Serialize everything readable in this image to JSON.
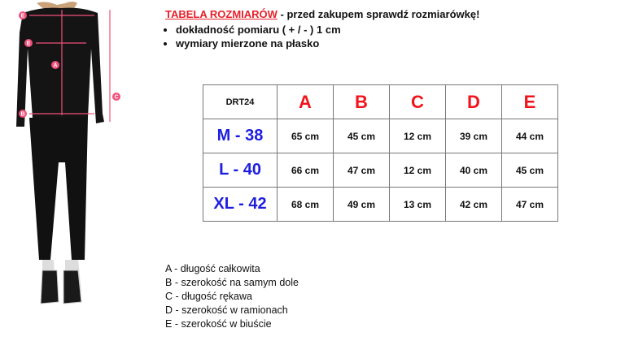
{
  "header": {
    "title": "TABELA ROZMIARÓW",
    "subtitle": " - przed zakupem sprawdź rozmiarówkę!"
  },
  "notes": [
    "dokładność pomiaru ( + / - ) 1 cm",
    "wymiary mierzone na płasko"
  ],
  "table": {
    "code": "DRT24",
    "columns": [
      "A",
      "B",
      "C",
      "D",
      "E"
    ],
    "rows": [
      {
        "size": "M - 38",
        "values": [
          "65 cm",
          "45 cm",
          "12 cm",
          "39 cm",
          "44 cm"
        ]
      },
      {
        "size": "L - 40",
        "values": [
          "66 cm",
          "47 cm",
          "12 cm",
          "40 cm",
          "45 cm"
        ]
      },
      {
        "size": "XL - 42",
        "values": [
          "68 cm",
          "49 cm",
          "13 cm",
          "42 cm",
          "47 cm"
        ]
      }
    ]
  },
  "legend": [
    {
      "key": "A",
      "text": " - długość całkowita"
    },
    {
      "key": "B",
      "text": " - szerokość na samym dole"
    },
    {
      "key": "C",
      "text": " - długość rękawa"
    },
    {
      "key": "D",
      "text": " - szerokość w ramionach"
    },
    {
      "key": "E",
      "text": " - szerokość w biuście"
    }
  ],
  "figure_markers": [
    "A",
    "B",
    "C",
    "D",
    "E"
  ],
  "colors": {
    "accent_red": "#f2141c",
    "size_blue": "#1d1ee0",
    "marker_pink": "#f0507a"
  }
}
